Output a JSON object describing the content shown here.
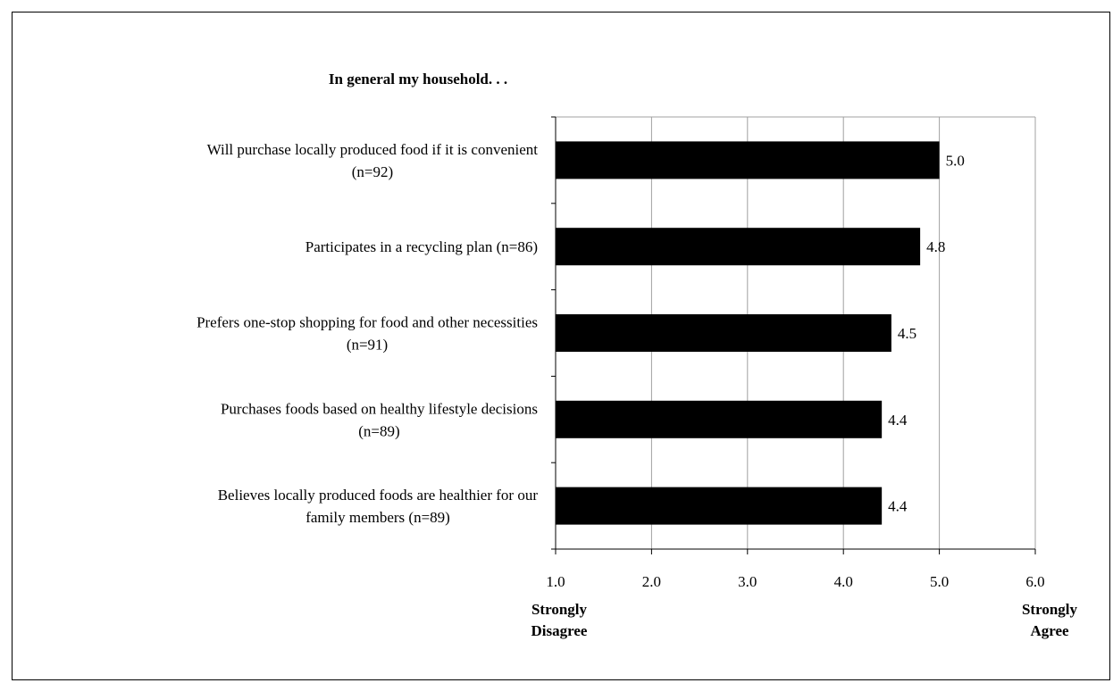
{
  "chart_data": {
    "type": "bar",
    "orientation": "horizontal",
    "title": "In general my household. . .",
    "categories": [
      [
        "Will purchase locally produced food if it is convenient",
        "(n=92)"
      ],
      [
        "Participates in a recycling plan (n=86)"
      ],
      [
        "Prefers one-stop shopping for food and other necessities",
        "(n=91)"
      ],
      [
        "Purchases foods based on healthy lifestyle decisions",
        "(n=89)"
      ],
      [
        "Believes locally produced foods are healthier for our",
        "family members (n=89)"
      ]
    ],
    "values": [
      5.0,
      4.8,
      4.5,
      4.4,
      4.4
    ],
    "value_labels": [
      "5.0",
      "4.8",
      "4.5",
      "4.4",
      "4.4"
    ],
    "xlim": [
      1.0,
      6.0
    ],
    "xticks": [
      1.0,
      2.0,
      3.0,
      4.0,
      5.0,
      6.0
    ],
    "xtick_labels": [
      "1.0",
      "2.0",
      "3.0",
      "4.0",
      "5.0",
      "6.0"
    ],
    "x_end_labels": {
      "left": [
        "Strongly",
        "Disagree"
      ],
      "right": [
        "Strongly",
        "Agree"
      ]
    },
    "bar_color": "#000000",
    "grid": "vertical",
    "legend": "none"
  }
}
